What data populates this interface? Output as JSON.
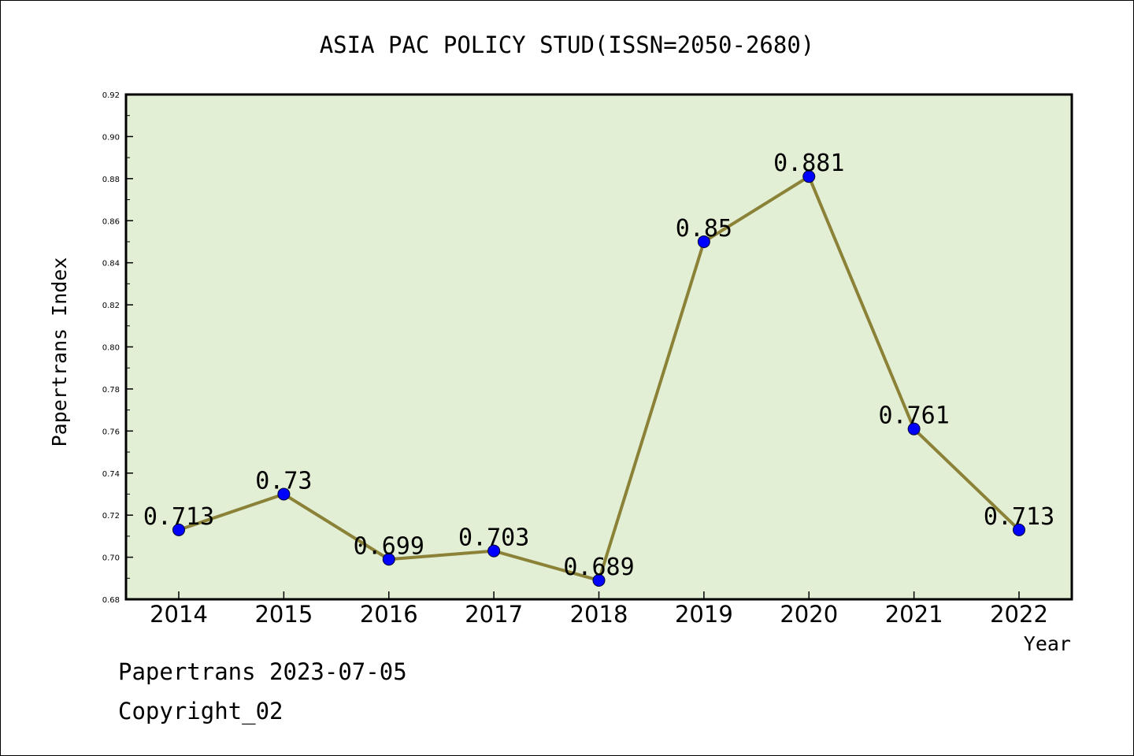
{
  "chart_data": {
    "type": "line",
    "title": "ASIA PAC POLICY STUD(ISSN=2050-2680)",
    "xlabel": "Year",
    "ylabel": "Papertrans Index",
    "categories": [
      "2014",
      "2015",
      "2016",
      "2017",
      "2018",
      "2019",
      "2020",
      "2021",
      "2022"
    ],
    "series": [
      {
        "values": [
          0.713,
          0.73,
          0.699,
          0.703,
          0.689,
          0.85,
          0.881,
          0.761,
          0.713
        ],
        "labels": [
          "0.713",
          "0.73",
          "0.699",
          "0.703",
          "0.689",
          "0.85",
          "0.881",
          "0.761",
          "0.713"
        ]
      }
    ],
    "ylim": [
      0.68,
      0.92
    ],
    "yticks": [
      "0.68",
      "0.70",
      "0.72",
      "0.74",
      "0.76",
      "0.78",
      "0.80",
      "0.82",
      "0.84",
      "0.86",
      "0.88",
      "0.90",
      "0.92"
    ],
    "grid": false,
    "colors": {
      "plot_background": "#e2efd5",
      "line": "#8b8238",
      "marker": "#0000ff"
    }
  },
  "footer": {
    "date_line": "Papertrans 2023-07-05",
    "copyright": "Copyright_02"
  }
}
